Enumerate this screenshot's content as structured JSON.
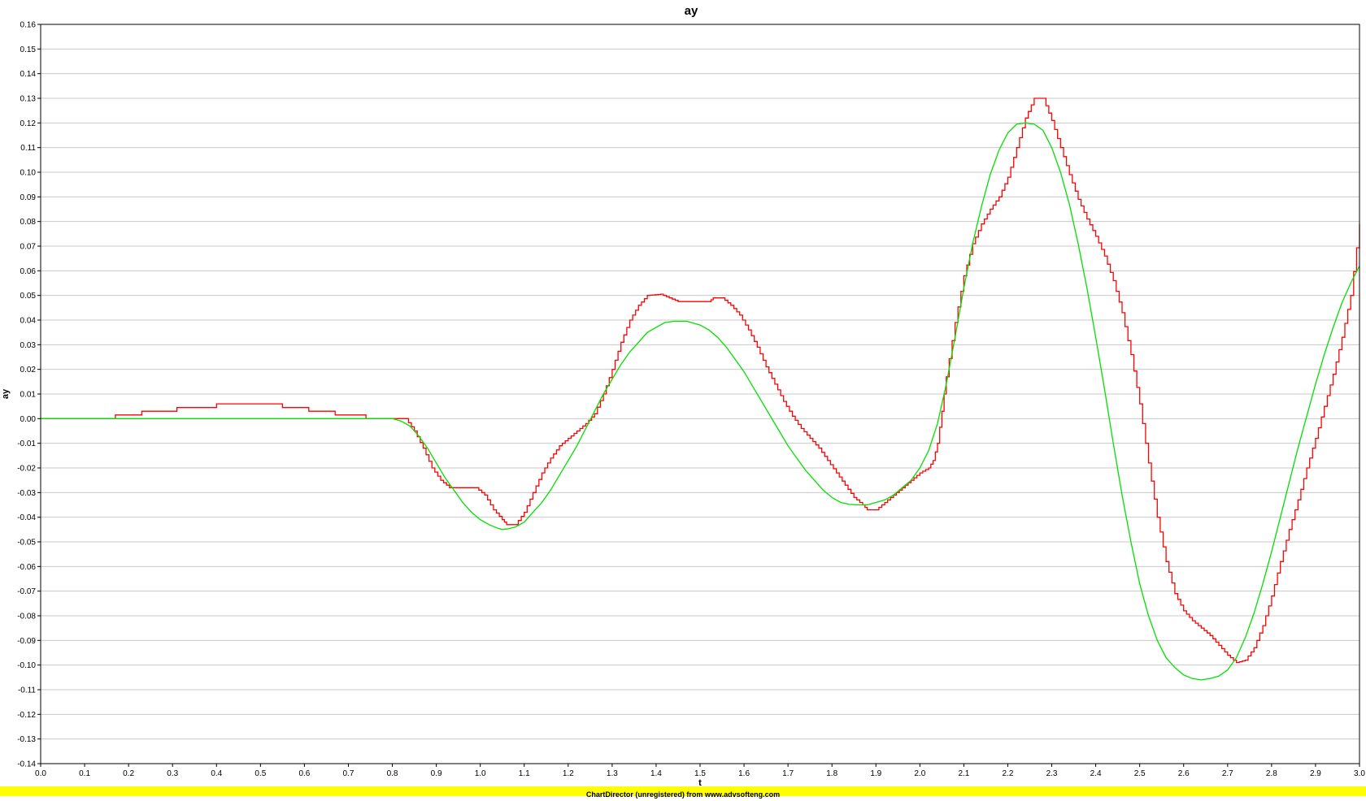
{
  "chart_data": {
    "type": "line",
    "title": "ay",
    "xlabel": "t",
    "ylabel": "ay",
    "xlim": [
      0,
      3
    ],
    "ylim": [
      -0.14,
      0.16
    ],
    "xticks": [
      "0.0",
      "0.1",
      "0.2",
      "0.3",
      "0.4",
      "0.5",
      "0.6",
      "0.7",
      "0.8",
      "0.9",
      "1.0",
      "1.1",
      "1.2",
      "1.3",
      "1.4",
      "1.5",
      "1.6",
      "1.7",
      "1.8",
      "1.9",
      "2.0",
      "2.1",
      "2.2",
      "2.3",
      "2.4",
      "2.5",
      "2.6",
      "2.7",
      "2.8",
      "2.9",
      "3.0"
    ],
    "yticks": [
      "0.16",
      "0.15",
      "0.14",
      "0.13",
      "0.12",
      "0.11",
      "0.10",
      "0.09",
      "0.08",
      "0.07",
      "0.06",
      "0.05",
      "0.04",
      "0.03",
      "0.02",
      "0.01",
      "0.00",
      "-0.01",
      "-0.02",
      "-0.03",
      "-0.04",
      "-0.05",
      "-0.06",
      "-0.07",
      "-0.08",
      "-0.09",
      "-0.10",
      "-0.11",
      "-0.12",
      "-0.13",
      "-0.14"
    ],
    "grid": true,
    "legend": "none",
    "series": [
      {
        "color": "#ff0000",
        "style": "step",
        "points": [
          [
            0.0,
            0.0
          ],
          [
            0.17,
            0.0
          ],
          [
            0.17,
            0.0015
          ],
          [
            0.23,
            0.0015
          ],
          [
            0.23,
            0.003
          ],
          [
            0.31,
            0.003
          ],
          [
            0.31,
            0.0045
          ],
          [
            0.4,
            0.0045
          ],
          [
            0.4,
            0.006
          ],
          [
            0.55,
            0.006
          ],
          [
            0.55,
            0.0045
          ],
          [
            0.61,
            0.0045
          ],
          [
            0.61,
            0.003
          ],
          [
            0.67,
            0.003
          ],
          [
            0.67,
            0.0015
          ],
          [
            0.74,
            0.0015
          ],
          [
            0.74,
            0.0
          ],
          [
            0.83,
            0.0
          ],
          [
            0.85,
            -0.005
          ],
          [
            0.87,
            -0.012
          ],
          [
            0.89,
            -0.02
          ],
          [
            0.91,
            -0.025
          ],
          [
            0.93,
            -0.028
          ],
          [
            0.99,
            -0.028
          ],
          [
            1.01,
            -0.031
          ],
          [
            1.03,
            -0.037
          ],
          [
            1.05,
            -0.041
          ],
          [
            1.06,
            -0.043
          ],
          [
            1.08,
            -0.043
          ],
          [
            1.1,
            -0.038
          ],
          [
            1.12,
            -0.03
          ],
          [
            1.14,
            -0.022
          ],
          [
            1.16,
            -0.016
          ],
          [
            1.18,
            -0.011
          ],
          [
            1.2,
            -0.008
          ],
          [
            1.22,
            -0.005
          ],
          [
            1.24,
            -0.002
          ],
          [
            1.26,
            0.002
          ],
          [
            1.28,
            0.01
          ],
          [
            1.3,
            0.02
          ],
          [
            1.32,
            0.031
          ],
          [
            1.34,
            0.04
          ],
          [
            1.36,
            0.046
          ],
          [
            1.38,
            0.05
          ],
          [
            1.41,
            0.0505
          ],
          [
            1.43,
            0.049
          ],
          [
            1.45,
            0.0475
          ],
          [
            1.52,
            0.0475
          ],
          [
            1.53,
            0.049
          ],
          [
            1.55,
            0.049
          ],
          [
            1.57,
            0.046
          ],
          [
            1.59,
            0.042
          ],
          [
            1.61,
            0.036
          ],
          [
            1.63,
            0.029
          ],
          [
            1.65,
            0.021
          ],
          [
            1.67,
            0.014
          ],
          [
            1.69,
            0.007
          ],
          [
            1.71,
            0.001
          ],
          [
            1.73,
            -0.004
          ],
          [
            1.75,
            -0.008
          ],
          [
            1.77,
            -0.012
          ],
          [
            1.79,
            -0.017
          ],
          [
            1.81,
            -0.022
          ],
          [
            1.83,
            -0.027
          ],
          [
            1.85,
            -0.032
          ],
          [
            1.87,
            -0.035
          ],
          [
            1.88,
            -0.037
          ],
          [
            1.9,
            -0.037
          ],
          [
            1.92,
            -0.034
          ],
          [
            1.94,
            -0.031
          ],
          [
            1.96,
            -0.028
          ],
          [
            1.98,
            -0.025
          ],
          [
            2.0,
            -0.022
          ],
          [
            2.02,
            -0.02
          ],
          [
            2.03,
            -0.017
          ],
          [
            2.04,
            -0.01
          ],
          [
            2.05,
            0.003
          ],
          [
            2.06,
            0.017
          ],
          [
            2.08,
            0.039
          ],
          [
            2.1,
            0.058
          ],
          [
            2.12,
            0.071
          ],
          [
            2.14,
            0.079
          ],
          [
            2.16,
            0.085
          ],
          [
            2.18,
            0.09
          ],
          [
            2.2,
            0.098
          ],
          [
            2.22,
            0.11
          ],
          [
            2.24,
            0.122
          ],
          [
            2.26,
            0.13
          ],
          [
            2.28,
            0.13
          ],
          [
            2.3,
            0.121
          ],
          [
            2.32,
            0.11
          ],
          [
            2.34,
            0.099
          ],
          [
            2.36,
            0.089
          ],
          [
            2.38,
            0.081
          ],
          [
            2.4,
            0.074
          ],
          [
            2.42,
            0.066
          ],
          [
            2.44,
            0.056
          ],
          [
            2.46,
            0.043
          ],
          [
            2.48,
            0.026
          ],
          [
            2.5,
            0.006
          ],
          [
            2.52,
            -0.018
          ],
          [
            2.54,
            -0.04
          ],
          [
            2.56,
            -0.058
          ],
          [
            2.58,
            -0.071
          ],
          [
            2.6,
            -0.078
          ],
          [
            2.62,
            -0.082
          ],
          [
            2.64,
            -0.085
          ],
          [
            2.66,
            -0.088
          ],
          [
            2.68,
            -0.092
          ],
          [
            2.7,
            -0.096
          ],
          [
            2.72,
            -0.099
          ],
          [
            2.74,
            -0.098
          ],
          [
            2.76,
            -0.093
          ],
          [
            2.78,
            -0.084
          ],
          [
            2.8,
            -0.072
          ],
          [
            2.82,
            -0.058
          ],
          [
            2.84,
            -0.045
          ],
          [
            2.86,
            -0.033
          ],
          [
            2.88,
            -0.02
          ],
          [
            2.9,
            -0.008
          ],
          [
            2.92,
            0.005
          ],
          [
            2.94,
            0.018
          ],
          [
            2.96,
            0.033
          ],
          [
            2.98,
            0.05
          ],
          [
            3.0,
            0.079
          ]
        ]
      },
      {
        "color": "#00e000",
        "style": "line",
        "points": [
          [
            0.0,
            0.0
          ],
          [
            0.8,
            0.0
          ],
          [
            0.82,
            -0.001
          ],
          [
            0.84,
            -0.003
          ],
          [
            0.86,
            -0.007
          ],
          [
            0.88,
            -0.012
          ],
          [
            0.9,
            -0.018
          ],
          [
            0.92,
            -0.024
          ],
          [
            0.94,
            -0.029
          ],
          [
            0.96,
            -0.034
          ],
          [
            0.98,
            -0.038
          ],
          [
            1.0,
            -0.041
          ],
          [
            1.02,
            -0.043
          ],
          [
            1.04,
            -0.0445
          ],
          [
            1.05,
            -0.045
          ],
          [
            1.06,
            -0.0448
          ],
          [
            1.08,
            -0.044
          ],
          [
            1.1,
            -0.042
          ],
          [
            1.12,
            -0.038
          ],
          [
            1.14,
            -0.034
          ],
          [
            1.16,
            -0.029
          ],
          [
            1.18,
            -0.023
          ],
          [
            1.2,
            -0.017
          ],
          [
            1.22,
            -0.011
          ],
          [
            1.24,
            -0.004
          ],
          [
            1.26,
            0.003
          ],
          [
            1.28,
            0.01
          ],
          [
            1.3,
            0.016
          ],
          [
            1.32,
            0.022
          ],
          [
            1.34,
            0.027
          ],
          [
            1.36,
            0.031
          ],
          [
            1.38,
            0.035
          ],
          [
            1.4,
            0.037
          ],
          [
            1.42,
            0.039
          ],
          [
            1.44,
            0.0395
          ],
          [
            1.47,
            0.0395
          ],
          [
            1.5,
            0.038
          ],
          [
            1.52,
            0.036
          ],
          [
            1.54,
            0.033
          ],
          [
            1.56,
            0.029
          ],
          [
            1.58,
            0.024
          ],
          [
            1.6,
            0.019
          ],
          [
            1.62,
            0.013
          ],
          [
            1.64,
            0.007
          ],
          [
            1.66,
            0.001
          ],
          [
            1.68,
            -0.005
          ],
          [
            1.7,
            -0.011
          ],
          [
            1.72,
            -0.016
          ],
          [
            1.74,
            -0.021
          ],
          [
            1.76,
            -0.025
          ],
          [
            1.78,
            -0.029
          ],
          [
            1.8,
            -0.032
          ],
          [
            1.82,
            -0.034
          ],
          [
            1.84,
            -0.0348
          ],
          [
            1.86,
            -0.035
          ],
          [
            1.88,
            -0.035
          ],
          [
            1.9,
            -0.034
          ],
          [
            1.92,
            -0.033
          ],
          [
            1.94,
            -0.031
          ],
          [
            1.96,
            -0.028
          ],
          [
            1.98,
            -0.025
          ],
          [
            2.0,
            -0.02
          ],
          [
            2.02,
            -0.013
          ],
          [
            2.04,
            -0.002
          ],
          [
            2.06,
            0.014
          ],
          [
            2.08,
            0.033
          ],
          [
            2.1,
            0.053
          ],
          [
            2.12,
            0.071
          ],
          [
            2.14,
            0.086
          ],
          [
            2.16,
            0.099
          ],
          [
            2.18,
            0.109
          ],
          [
            2.2,
            0.116
          ],
          [
            2.22,
            0.1195
          ],
          [
            2.24,
            0.12
          ],
          [
            2.26,
            0.1195
          ],
          [
            2.28,
            0.117
          ],
          [
            2.3,
            0.11
          ],
          [
            2.32,
            0.1
          ],
          [
            2.34,
            0.087
          ],
          [
            2.36,
            0.071
          ],
          [
            2.38,
            0.053
          ],
          [
            2.4,
            0.033
          ],
          [
            2.42,
            0.012
          ],
          [
            2.44,
            -0.01
          ],
          [
            2.46,
            -0.031
          ],
          [
            2.48,
            -0.05
          ],
          [
            2.5,
            -0.067
          ],
          [
            2.52,
            -0.08
          ],
          [
            2.54,
            -0.09
          ],
          [
            2.56,
            -0.097
          ],
          [
            2.58,
            -0.101
          ],
          [
            2.6,
            -0.104
          ],
          [
            2.62,
            -0.1055
          ],
          [
            2.64,
            -0.106
          ],
          [
            2.66,
            -0.1055
          ],
          [
            2.68,
            -0.1045
          ],
          [
            2.7,
            -0.102
          ],
          [
            2.72,
            -0.097
          ],
          [
            2.74,
            -0.089
          ],
          [
            2.76,
            -0.079
          ],
          [
            2.78,
            -0.067
          ],
          [
            2.8,
            -0.054
          ],
          [
            2.82,
            -0.04
          ],
          [
            2.84,
            -0.026
          ],
          [
            2.86,
            -0.012
          ],
          [
            2.88,
            0.001
          ],
          [
            2.9,
            0.014
          ],
          [
            2.92,
            0.026
          ],
          [
            2.94,
            0.037
          ],
          [
            2.96,
            0.047
          ],
          [
            2.98,
            0.055
          ],
          [
            3.0,
            0.062
          ]
        ]
      }
    ]
  },
  "footer": {
    "text": "ChartDirector (unregistered) from www.advsofteng.com",
    "color": "#ffff00"
  }
}
